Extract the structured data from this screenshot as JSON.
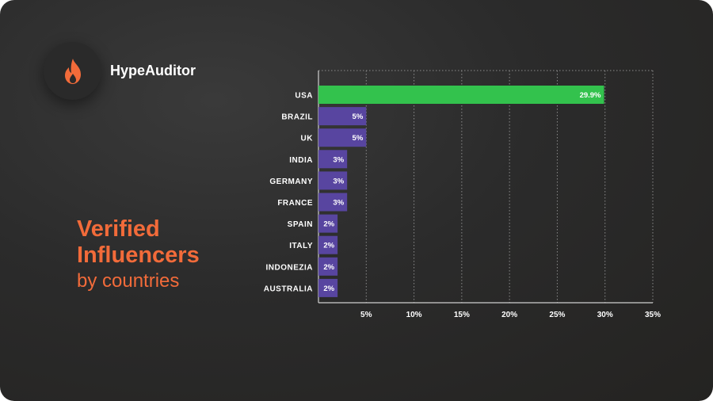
{
  "brand": {
    "name": "HypeAuditor",
    "icon": "flame-icon",
    "icon_color": "#f26b3a"
  },
  "headline": {
    "line1": "Verified",
    "line2": "Influencers",
    "subtitle": "by countries"
  },
  "colors": {
    "accent": "#f26b3a",
    "highlight_bar": "#33c24d",
    "bar": "#5845a0",
    "background": "#2b2b2b"
  },
  "chart_data": {
    "type": "bar",
    "orientation": "horizontal",
    "categories": [
      "USA",
      "BRAZIL",
      "UK",
      "INDIA",
      "GERMANY",
      "FRANCE",
      "SPAIN",
      "ITALY",
      "INDONEZIA",
      "AUSTRALIA"
    ],
    "values": [
      29.9,
      5,
      5,
      3,
      3,
      3,
      2,
      2,
      2,
      2
    ],
    "data_labels": [
      "29.9%",
      "5%",
      "5%",
      "3%",
      "3%",
      "3%",
      "2%",
      "2%",
      "2%",
      "2%"
    ],
    "x_ticks": [
      5,
      10,
      15,
      20,
      25,
      30,
      35
    ],
    "x_tick_labels": [
      "5%",
      "10%",
      "15%",
      "20%",
      "25%",
      "30%",
      "35%"
    ],
    "xlim": [
      0,
      35
    ],
    "grid": "vertical dotted",
    "highlight": "USA"
  }
}
